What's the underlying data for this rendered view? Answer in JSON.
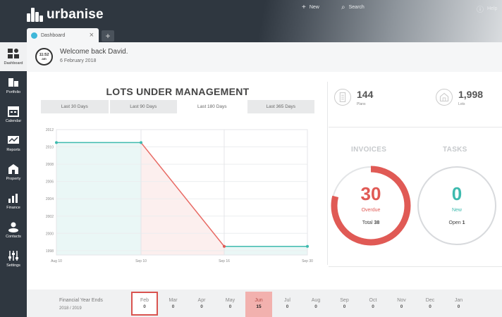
{
  "app": {
    "brand": "urbanise"
  },
  "topnav": {
    "new": "New",
    "search": "Search",
    "help": "Help"
  },
  "tab": {
    "label": "Dashboard",
    "add": "+",
    "close": "×"
  },
  "sidebar": {
    "items": [
      {
        "label": "Dashboard",
        "icon": "dashboard-icon"
      },
      {
        "label": "Portfolio",
        "icon": "portfolio-icon"
      },
      {
        "label": "Calendar",
        "icon": "calendar-icon"
      },
      {
        "label": "Reports",
        "icon": "reports-icon"
      },
      {
        "label": "Property",
        "icon": "property-icon"
      },
      {
        "label": "Finance",
        "icon": "finance-icon"
      },
      {
        "label": "Contacts",
        "icon": "contacts-icon"
      },
      {
        "label": "Settings",
        "icon": "settings-icon"
      }
    ]
  },
  "welcome": {
    "clock_time": "11:52",
    "clock_ampm": "am",
    "title": "Welcome back David.",
    "date": "6 February 2018"
  },
  "lots": {
    "title": "LOTS UNDER MANAGEMENT",
    "filters": [
      "Last 30 Days",
      "Last 90 Days",
      "Last 180 Days",
      "Last 365 Days"
    ],
    "active_filter": 2
  },
  "chart_data": {
    "type": "line",
    "title": "LOTS UNDER MANAGEMENT",
    "xlabel": "",
    "ylabel": "",
    "x": [
      "Aug 10",
      "Sep 10",
      "Sep 16",
      "Sep 30"
    ],
    "y_ticks": [
      1998,
      2000,
      2002,
      2004,
      2006,
      2008,
      2010,
      2012
    ],
    "ylim": [
      1997.5,
      2012
    ],
    "series": [
      {
        "values": [
          2010.5,
          2010.5,
          1998.5,
          1998.5
        ]
      }
    ],
    "segment_colors": [
      "#3dbaae",
      "#e86a64",
      "#3dbaae"
    ],
    "grid": true,
    "legend": "none"
  },
  "stats": {
    "plans": {
      "value": "144",
      "label": "Plans"
    },
    "lots": {
      "value": "1,998",
      "label": "Lots"
    }
  },
  "invoices": {
    "label": "INVOICES",
    "value": "30",
    "status": "Overdue",
    "total_label": "Total",
    "total": "38",
    "overdue_fraction": 0.79,
    "color": "#e05a55"
  },
  "tasks": {
    "label": "TASKS",
    "value": "0",
    "status": "New",
    "open_label": "Open",
    "open": "1",
    "color": "#3dbaae"
  },
  "financial": {
    "label": "Financial Year Ends",
    "year": "2018 / 2019",
    "months": [
      {
        "m": "Feb",
        "c": "0"
      },
      {
        "m": "Mar",
        "c": "0"
      },
      {
        "m": "Apr",
        "c": "0"
      },
      {
        "m": "May",
        "c": "0"
      },
      {
        "m": "Jun",
        "c": "15"
      },
      {
        "m": "Jul",
        "c": "0"
      },
      {
        "m": "Aug",
        "c": "0"
      },
      {
        "m": "Sep",
        "c": "0"
      },
      {
        "m": "Oct",
        "c": "0"
      },
      {
        "m": "Nov",
        "c": "0"
      },
      {
        "m": "Dec",
        "c": "0"
      },
      {
        "m": "Jan",
        "c": "0"
      }
    ],
    "selected_index": 0,
    "highlight_index": 4
  }
}
